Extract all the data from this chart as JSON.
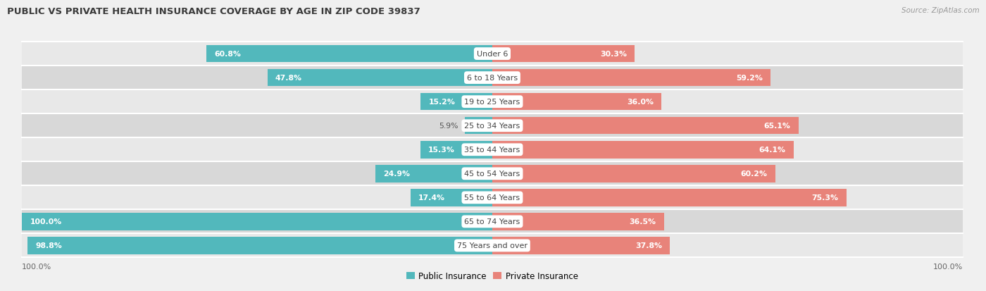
{
  "title": "PUBLIC VS PRIVATE HEALTH INSURANCE COVERAGE BY AGE IN ZIP CODE 39837",
  "source": "Source: ZipAtlas.com",
  "categories": [
    "Under 6",
    "6 to 18 Years",
    "19 to 25 Years",
    "25 to 34 Years",
    "35 to 44 Years",
    "45 to 54 Years",
    "55 to 64 Years",
    "65 to 74 Years",
    "75 Years and over"
  ],
  "public_values": [
    60.8,
    47.8,
    15.2,
    5.9,
    15.3,
    24.9,
    17.4,
    100.0,
    98.8
  ],
  "private_values": [
    30.3,
    59.2,
    36.0,
    65.1,
    64.1,
    60.2,
    75.3,
    36.5,
    37.8
  ],
  "public_color": "#52b8bc",
  "private_color": "#e8837a",
  "row_colors": [
    "#e8e8e8",
    "#d8d8d8"
  ],
  "text_color_dark": "#555555",
  "text_color_white": "#ffffff",
  "title_color": "#3a3a3a",
  "axis_max": 100.0,
  "figsize": [
    14.06,
    4.14
  ],
  "dpi": 100,
  "label_inside_threshold_pub": 15,
  "label_inside_threshold_priv": 15
}
